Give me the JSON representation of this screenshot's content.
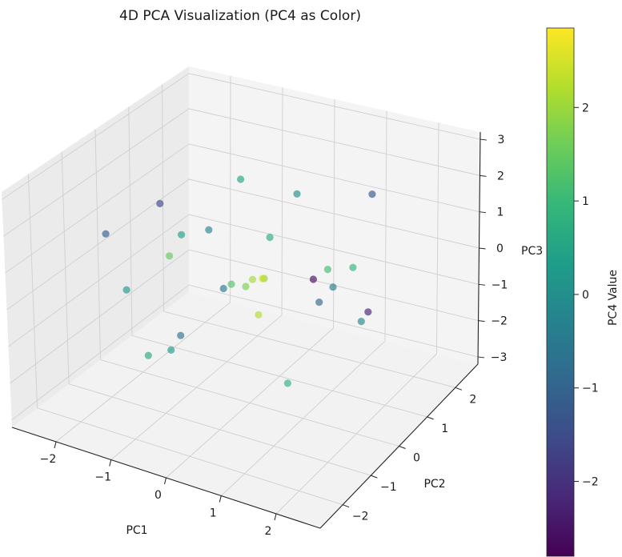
{
  "chart_data": {
    "type": "scatter",
    "subtype": "3d-scatter-with-colorbar",
    "title": "4D PCA Visualization (PC4 as Color)",
    "xlabel": "PC1",
    "ylabel": "PC2",
    "zlabel": "PC3",
    "colorbar_label": "PC4 Value",
    "colormap": "viridis",
    "xlim": [
      -2.8,
      2.8
    ],
    "ylim": [
      -2.8,
      2.8
    ],
    "zlim": [
      -3.2,
      3.2
    ],
    "clim": [
      -2.8,
      2.85
    ],
    "x_ticks": [
      "−2",
      "−1",
      "0",
      "1",
      "2"
    ],
    "y_ticks": [
      "−2",
      "−1",
      "0",
      "1",
      "2"
    ],
    "z_ticks": [
      "−3",
      "−2",
      "−1",
      "0",
      "1",
      "2",
      "3"
    ],
    "colorbar_ticks": [
      "−2",
      "−1",
      "0",
      "1",
      "2"
    ],
    "grid": true,
    "marker_alpha": 0.65,
    "points": [
      [
        -0.5,
        -0.4,
        1.4,
        -0.3
      ],
      [
        0.8,
        1.2,
        -0.2,
        1.1
      ],
      [
        -1.6,
        0.6,
        0.3,
        0.4
      ],
      [
        1.9,
        -1.1,
        0.7,
        -0.9
      ],
      [
        0.2,
        0.1,
        0.05,
        2.4
      ],
      [
        -0.1,
        0.3,
        -0.2,
        2.1
      ],
      [
        0.4,
        -0.2,
        0.3,
        1.9
      ],
      [
        -0.9,
        -1.7,
        -1.2,
        0.6
      ],
      [
        1.3,
        1.8,
        1.6,
        -1.4
      ],
      [
        -2.1,
        -0.3,
        -0.8,
        0.2
      ],
      [
        0.6,
        -1.9,
        1.1,
        -0.5
      ],
      [
        -1.2,
        1.5,
        -1.5,
        1.3
      ],
      [
        2.0,
        0.4,
        -0.4,
        -2.3
      ],
      [
        -0.3,
        2.1,
        0.9,
        0.0
      ],
      [
        1.1,
        -0.7,
        -1.8,
        0.8
      ],
      [
        -1.8,
        -1.4,
        1.5,
        -1.1
      ],
      [
        0.0,
        -0.1,
        -0.1,
        1.7
      ],
      [
        -0.6,
        0.8,
        2.0,
        0.5
      ],
      [
        1.6,
        0.9,
        -1.1,
        -0.2
      ],
      [
        -1.4,
        0.2,
        -2.1,
        -0.7
      ],
      [
        0.9,
        -1.3,
        0.2,
        2.2
      ],
      [
        -0.2,
        -2.2,
        -0.5,
        0.3
      ],
      [
        2.2,
        -0.5,
        1.3,
        0.9
      ],
      [
        -2.3,
        1.1,
        0.6,
        -1.6
      ],
      [
        0.3,
        1.6,
        -0.9,
        -2.6
      ],
      [
        -1.0,
        -0.8,
        0.8,
        1.5
      ],
      [
        1.4,
        0.3,
        0.1,
        -0.4
      ],
      [
        -0.7,
        1.9,
        -0.3,
        0.7
      ]
    ]
  }
}
